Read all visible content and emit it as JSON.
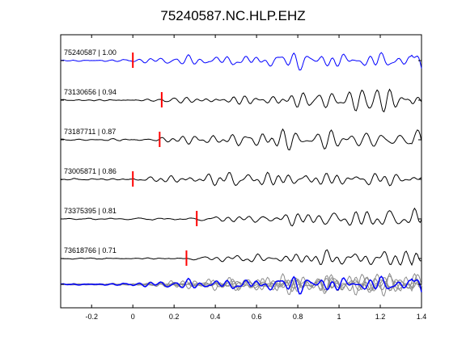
{
  "chart_data": {
    "type": "line",
    "title": "75240587.NC.HLP.EHZ",
    "xlabel": "",
    "ylabel": "",
    "xlim": [
      -0.35,
      1.4
    ],
    "x_ticks": [
      -0.2,
      0,
      0.2,
      0.4,
      0.6,
      0.8,
      1,
      1.2,
      1.4
    ],
    "x_tick_labels": [
      "-0.2",
      "0",
      "0.2",
      "0.4",
      "0.6",
      "0.8",
      "1",
      "1.2",
      "1.4"
    ],
    "grid": false,
    "colors": {
      "reference": "#0000ff",
      "trace": "#000000",
      "pick": "#ff0000",
      "stack_gray": "#8c8c8c"
    },
    "traces": [
      {
        "label": "75240587 | 1.00",
        "event_id": "75240587",
        "correlation": 1.0,
        "pick_time": 0.0,
        "color": "#0000ff"
      },
      {
        "label": "73130656 | 0.94",
        "event_id": "73130656",
        "correlation": 0.94,
        "pick_time": 0.14,
        "color": "#000000"
      },
      {
        "label": "73187711 | 0.87",
        "event_id": "73187711",
        "correlation": 0.87,
        "pick_time": 0.13,
        "color": "#000000"
      },
      {
        "label": "73005871 | 0.86",
        "event_id": "73005871",
        "correlation": 0.86,
        "pick_time": 0.0,
        "color": "#000000"
      },
      {
        "label": "73375395 | 0.81",
        "event_id": "73375395",
        "correlation": 0.81,
        "pick_time": 0.31,
        "color": "#000000"
      },
      {
        "label": "73618766 | 0.71",
        "event_id": "73618766",
        "correlation": 0.71,
        "pick_time": 0.26,
        "color": "#000000"
      }
    ],
    "stack": {
      "label": "overlay of all traces",
      "reference_color": "#0000ff",
      "others_color": "#8c8c8c"
    }
  }
}
